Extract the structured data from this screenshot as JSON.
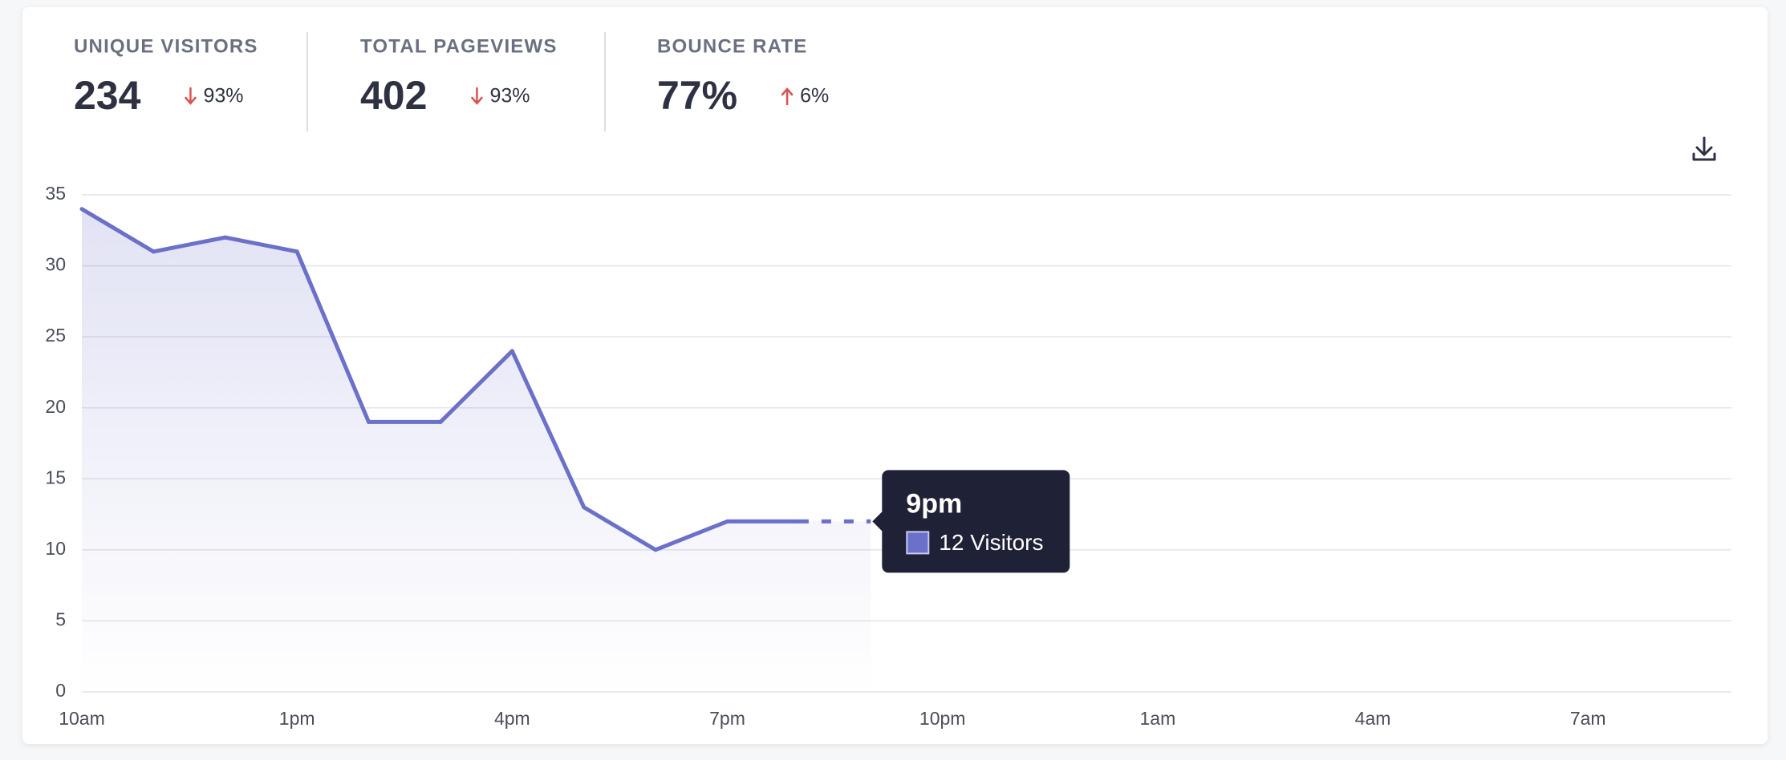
{
  "stats": [
    {
      "label": "UNIQUE VISITORS",
      "value": "234",
      "change": "93%",
      "direction": "down"
    },
    {
      "label": "TOTAL PAGEVIEWS",
      "value": "402",
      "change": "93%",
      "direction": "down"
    },
    {
      "label": "BOUNCE RATE",
      "value": "77%",
      "change": "6%",
      "direction": "up"
    }
  ],
  "chart_data": {
    "type": "line",
    "categories": [
      "10am",
      null,
      null,
      "1pm",
      null,
      null,
      "4pm",
      null,
      null,
      "7pm",
      null,
      null,
      "10pm",
      null,
      null,
      "1am",
      null,
      null,
      "4am",
      null,
      null,
      "7am",
      null,
      null
    ],
    "values": [
      34,
      31,
      32,
      31,
      19,
      19,
      24,
      13,
      10,
      12,
      12,
      12,
      null,
      null,
      null,
      null,
      null,
      null,
      null,
      null,
      null,
      null,
      null,
      null
    ],
    "color": "#6b70c9",
    "ylim": [
      0,
      35
    ],
    "yticks": [
      0,
      5,
      10,
      15,
      20,
      25,
      30,
      35
    ],
    "grid": true,
    "dashed_last_segment": true,
    "tooltip": {
      "title": "9pm",
      "label": "12 Visitors"
    }
  }
}
